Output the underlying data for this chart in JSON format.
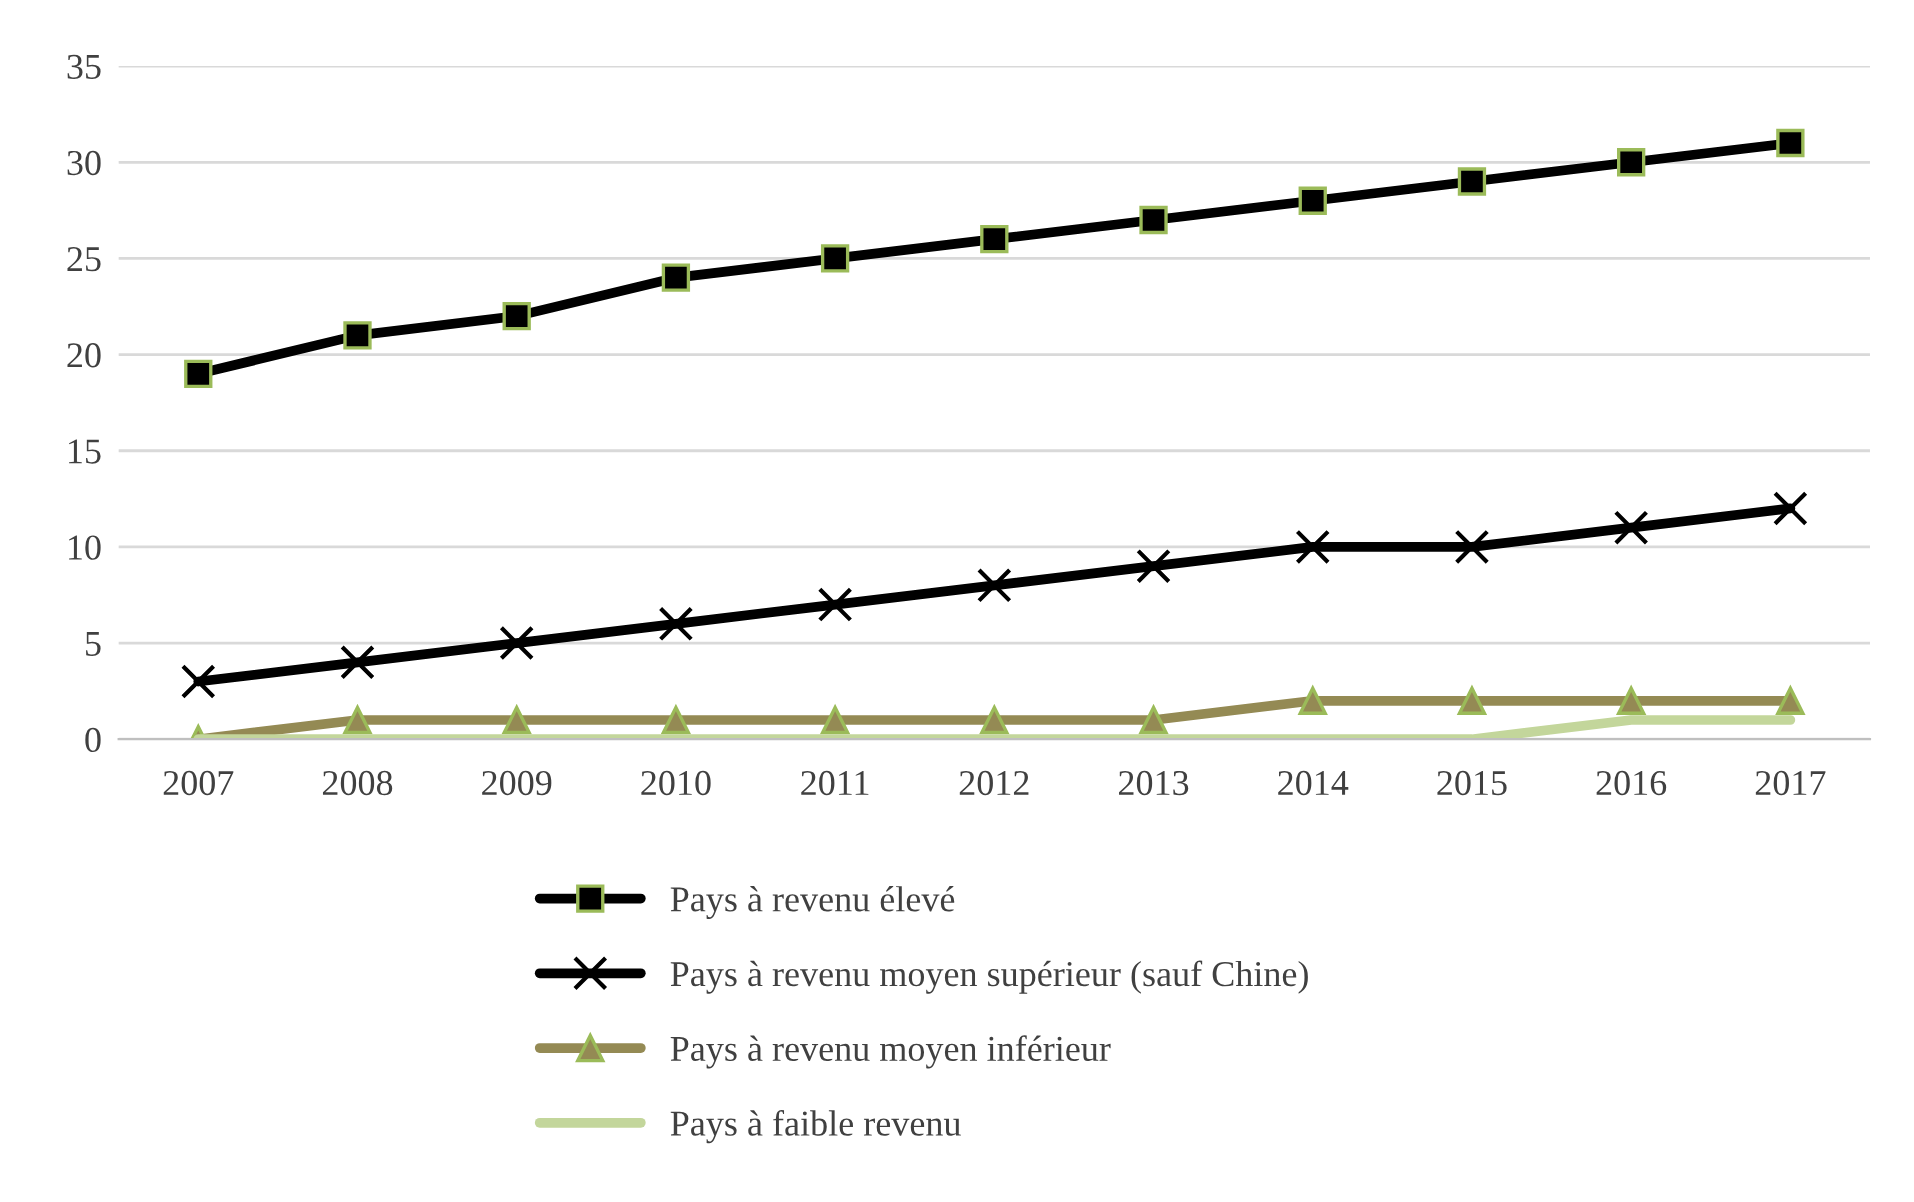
{
  "chart_data": {
    "type": "line",
    "categories": [
      "2007",
      "2008",
      "2009",
      "2010",
      "2011",
      "2012",
      "2013",
      "2014",
      "2015",
      "2016",
      "2017"
    ],
    "series": [
      {
        "name": "Pays à revenu élevé",
        "color": "#000000",
        "marker": "square",
        "values": [
          19,
          21,
          22,
          24,
          25,
          26,
          27,
          28,
          29,
          30,
          31
        ]
      },
      {
        "name": "Pays à revenu moyen supérieur (sauf Chine)",
        "color": "#000000",
        "marker": "cross",
        "values": [
          3,
          4,
          5,
          6,
          7,
          8,
          9,
          10,
          10,
          11,
          12
        ]
      },
      {
        "name": "Pays à revenu moyen inférieur",
        "color": "#948a54",
        "marker": "triangle",
        "values": [
          0,
          1,
          1,
          1,
          1,
          1,
          1,
          2,
          2,
          2,
          2
        ]
      },
      {
        "name": "Pays à faible revenu",
        "color": "#c3d69b",
        "marker": "none",
        "values": [
          0,
          0,
          0,
          0,
          0,
          0,
          0,
          0,
          0,
          1,
          1
        ]
      }
    ],
    "ylim": [
      0,
      35
    ],
    "yticks": [
      0,
      5,
      10,
      15,
      20,
      25,
      30,
      35
    ],
    "grid": "y",
    "legend": "bottom"
  }
}
